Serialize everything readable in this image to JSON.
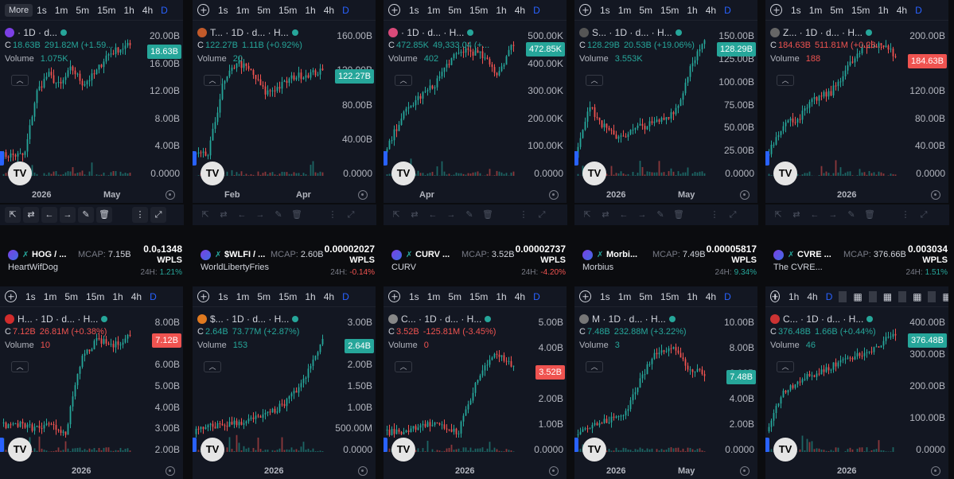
{
  "toolbar": {
    "more_label": "More",
    "intervals": [
      "1s",
      "1m",
      "5m",
      "15m",
      "1h",
      "4h",
      "D"
    ],
    "selected": "D",
    "short_intervals": [
      "1h",
      "4h",
      "D"
    ]
  },
  "colors": {
    "up": "#26a69a",
    "down": "#ef5350",
    "accent": "#2962ff",
    "bg": "#131722"
  },
  "charts": [
    {
      "name": "· 1D · d...",
      "ohlc_c": "C",
      "c": "18.63B",
      "chg": "291.82M (+1.59...",
      "trend": "up",
      "volume_label": "Volume",
      "volume": "1.075K",
      "axis": [
        "20.00B",
        "16.00B",
        "12.00B",
        "8.00B",
        "4.00B",
        "0.0000"
      ],
      "price_tag": "18.63B",
      "xlabels": [
        "2026",
        "May"
      ]
    },
    {
      "name": "T... · 1D · d... · H...",
      "ohlc_c": "C",
      "c": "122.27B",
      "chg": "1.11B (+0.92%)",
      "trend": "up",
      "volume_label": "Volume",
      "volume": "20",
      "axis": [
        "160.00B",
        "120.00B",
        "80.00B",
        "40.00B",
        "0.0000"
      ],
      "price_tag": "122.27B",
      "xlabels": [
        "Feb",
        "Apr"
      ]
    },
    {
      "name": "· 1D · d... · H...",
      "ohlc_c": "C",
      "c": "472.85K",
      "chg": "49,333.04 (+...",
      "trend": "up",
      "volume_label": "Volume",
      "volume": "402",
      "axis": [
        "500.00K",
        "400.00K",
        "300.00K",
        "200.00K",
        "100.00K",
        "0.0000"
      ],
      "price_tag": "472.85K",
      "xlabels": [
        "Apr"
      ]
    },
    {
      "name": "S... · 1D · d... · H...",
      "ohlc_c": "C",
      "c": "128.29B",
      "chg": "20.53B (+19.06%)",
      "trend": "up",
      "volume_label": "Volume",
      "volume": "3.553K",
      "axis": [
        "150.00B",
        "125.00B",
        "100.00B",
        "75.00B",
        "50.00B",
        "25.00B",
        "0.0000"
      ],
      "price_tag": "128.29B",
      "xlabels": [
        "2026",
        "May"
      ]
    },
    {
      "name": "Z... · 1D · d... · H...",
      "ohlc_c": "C",
      "c": "184.63B",
      "chg": "511.81M (+0.28...",
      "trend": "dn",
      "volume_label": "Volume",
      "volume": "188",
      "axis": [
        "200.00B",
        "160.00B",
        "120.00B",
        "80.00B",
        "40.00B",
        "0.0000"
      ],
      "price_tag": "184.63B",
      "xlabels": [
        "2026"
      ]
    },
    {
      "name": "H... · 1D · d... · H...",
      "ohlc_c": "C",
      "c": "7.12B",
      "chg": "26.81M (+0.38%)",
      "trend": "dn",
      "volume_label": "Volume",
      "volume": "10",
      "axis": [
        "8.00B",
        "7.00B",
        "6.00B",
        "5.00B",
        "4.00B",
        "3.00B",
        "2.00B"
      ],
      "price_tag": "7.12B",
      "xlabels": [
        "2026"
      ]
    },
    {
      "name": "$... · 1D · d... · H...",
      "ohlc_c": "C",
      "c": "2.64B",
      "chg": "73.77M (+2.87%)",
      "trend": "up",
      "volume_label": "Volume",
      "volume": "153",
      "axis": [
        "3.00B",
        "2.50B",
        "2.00B",
        "1.50B",
        "1.00B",
        "500.00M",
        "0.0000"
      ],
      "price_tag": "2.64B",
      "xlabels": [
        "2026"
      ]
    },
    {
      "name": "C... · 1D · d... · H...",
      "ohlc_c": "C",
      "c": "3.52B",
      "chg": "-125.81M (-3.45%)",
      "trend": "dn",
      "volume_label": "Volume",
      "volume": "0",
      "axis": [
        "5.00B",
        "4.00B",
        "3.00B",
        "2.00B",
        "1.00B",
        "0.0000"
      ],
      "price_tag": "3.52B",
      "xlabels": [
        "2026"
      ]
    },
    {
      "name": "M · 1D · d... · H...",
      "ohlc_c": "C",
      "c": "7.48B",
      "chg": "232.88M (+3.22%)",
      "trend": "up",
      "volume_label": "Volume",
      "volume": "3",
      "axis": [
        "10.00B",
        "8.00B",
        "6.00B",
        "4.00B",
        "2.00B",
        "0.0000"
      ],
      "price_tag": "7.48B",
      "xlabels": [
        "2026",
        "May"
      ]
    },
    {
      "name": "C... · 1D · d... · H...",
      "ohlc_c": "C",
      "c": "376.48B",
      "chg": "1.66B (+0.44%)",
      "trend": "up",
      "volume_label": "Volume",
      "volume": "46",
      "axis": [
        "400.00B",
        "300.00B",
        "200.00B",
        "100.00B",
        "0.0000"
      ],
      "price_tag": "376.48B",
      "xlabels": [
        "2026"
      ]
    }
  ],
  "cards": [
    {
      "symbol": "HOG / ...",
      "mcap_label": "MCAP:",
      "mcap": "7.15B",
      "full": "HeartWifDog",
      "price": "0.0₉1348",
      "unit": "WPLS",
      "chg_label": "24H:",
      "chg": "1.21%",
      "trend": "up"
    },
    {
      "symbol": "$WLFI / ...",
      "mcap_label": "MCAP:",
      "mcap": "2.60B",
      "full": "WorldLibertyFries",
      "price": "0.00002027",
      "unit": "WPLS",
      "chg_label": "24H:",
      "chg": "-0.14%",
      "trend": "dn"
    },
    {
      "symbol": "CURV ...",
      "mcap_label": "MCAP:",
      "mcap": "3.52B",
      "full": "CURV",
      "price": "0.00002737",
      "unit": "WPLS",
      "chg_label": "24H:",
      "chg": "-4.20%",
      "trend": "dn"
    },
    {
      "symbol": "Morbi...",
      "mcap_label": "MCAP:",
      "mcap": "7.49B",
      "full": "Morbius",
      "price": "0.00005817",
      "unit": "WPLS",
      "chg_label": "24H:",
      "chg": "9.34%",
      "trend": "up"
    },
    {
      "symbol": "CVRE ...",
      "mcap_label": "MCAP:",
      "mcap": "376.66B",
      "full": "The CVRE...",
      "price": "0.003034",
      "unit": "WPLS",
      "chg_label": "24H:",
      "chg": "1.51%",
      "trend": "up"
    }
  ],
  "bottom_tools": [
    "chart-type-icon",
    "compare-icon",
    "undo-icon",
    "redo-icon",
    "draw-icon",
    "trash-icon",
    "menu-icon",
    "fullscreen-icon"
  ]
}
